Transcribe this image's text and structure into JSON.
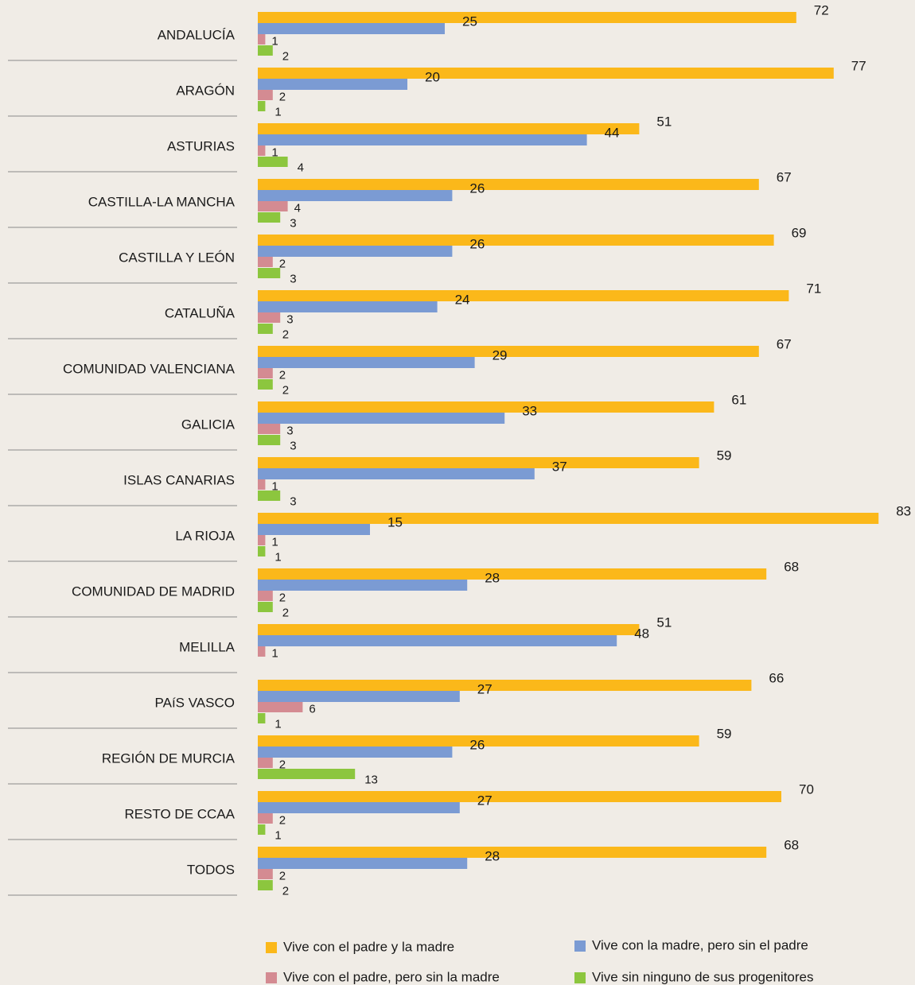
{
  "chart_data": {
    "type": "bar",
    "orientation": "horizontal",
    "categories": [
      "ANDALUCÍA",
      "ARAGÓN",
      "ASTURIAS",
      "CASTILLA-LA MANCHA",
      "CASTILLA Y LEÓN",
      "CATALUÑA",
      "COMUNIDAD VALENCIANA",
      "GALICIA",
      "ISLAS CANARIAS",
      "LA RIOJA",
      "COMUNIDAD DE MADRID",
      "MELILLA",
      "PAíS VASCO",
      "REGIÓN DE MURCIA",
      "RESTO DE CCAA",
      "TODOS"
    ],
    "series": [
      {
        "name": "Vive con el padre y la madre",
        "color": "#fbb81a",
        "values": [
          72,
          77,
          51,
          67,
          69,
          71,
          67,
          61,
          59,
          83,
          68,
          51,
          66,
          59,
          70,
          68
        ]
      },
      {
        "name": "Vive con la madre, pero sin el padre",
        "color": "#7b9bd3",
        "values": [
          25,
          20,
          44,
          26,
          26,
          24,
          29,
          33,
          37,
          15,
          28,
          48,
          27,
          26,
          27,
          28
        ]
      },
      {
        "name": "Vive con el padre, pero sin la madre",
        "color": "#d48b92",
        "values": [
          1,
          2,
          1,
          4,
          2,
          3,
          2,
          3,
          1,
          1,
          2,
          1,
          6,
          2,
          2,
          2
        ]
      },
      {
        "name": "Vive sin ninguno de sus progenitores",
        "color": "#8cc63e",
        "values": [
          2,
          1,
          4,
          3,
          3,
          2,
          2,
          3,
          3,
          1,
          2,
          null,
          1,
          13,
          1,
          2
        ]
      }
    ]
  }
}
